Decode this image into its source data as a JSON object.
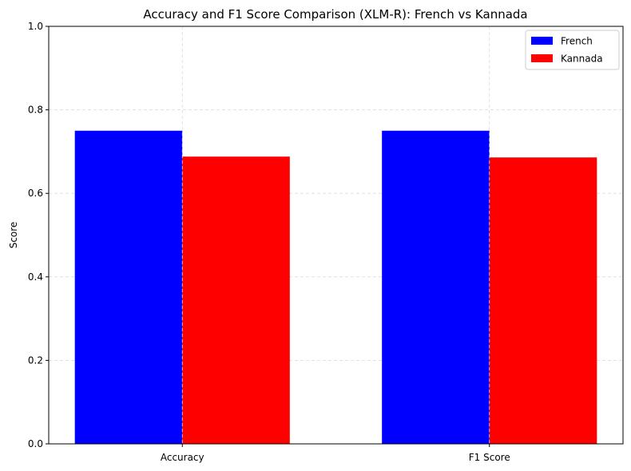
{
  "chart_data": {
    "type": "bar",
    "title": "Accuracy and F1 Score Comparison (XLM-R): French vs Kannada",
    "xlabel": "",
    "ylabel": "Score",
    "categories": [
      "Accuracy",
      "F1 Score"
    ],
    "series": [
      {
        "name": "French",
        "values": [
          0.75,
          0.75
        ],
        "color": "#0000ff"
      },
      {
        "name": "Kannada",
        "values": [
          0.688,
          0.686
        ],
        "color": "#ff0000"
      }
    ],
    "ylim": [
      0,
      1.0
    ],
    "yticks": [
      "0.0",
      "0.2",
      "0.4",
      "0.6",
      "0.8",
      "1.0"
    ],
    "grid": true,
    "legend_position": "top-right"
  }
}
